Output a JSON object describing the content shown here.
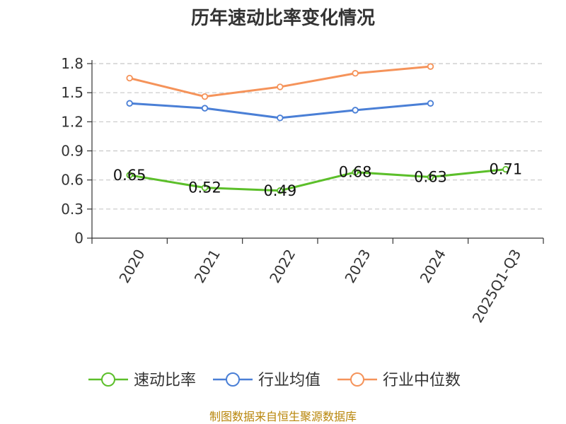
{
  "chart_data": {
    "type": "line",
    "title": "历年速动比率变化情况",
    "categories": [
      "2020",
      "2021",
      "2022",
      "2023",
      "2024",
      "2025Q1-Q3"
    ],
    "yticks": [
      "0",
      "0.3",
      "0.6",
      "0.9",
      "1.2",
      "1.5",
      "1.8"
    ],
    "ylim": [
      0,
      1.8
    ],
    "grid": true,
    "legend_position": "bottom",
    "series": [
      {
        "name": "速动比率",
        "color": "#5cbf2a",
        "values": [
          0.65,
          0.52,
          0.49,
          0.68,
          0.63,
          0.71
        ],
        "labels": [
          "0.65",
          "0.52",
          "0.49",
          "0.68",
          "0.63",
          "0.71"
        ]
      },
      {
        "name": "行业均值",
        "color": "#4a7fd6",
        "values": [
          1.39,
          1.34,
          1.24,
          1.32,
          1.39,
          null
        ]
      },
      {
        "name": "行业中位数",
        "color": "#f5935a",
        "values": [
          1.65,
          1.46,
          1.56,
          1.7,
          1.77,
          null
        ]
      }
    ]
  },
  "source_text": "制图数据来自恒生聚源数据库"
}
